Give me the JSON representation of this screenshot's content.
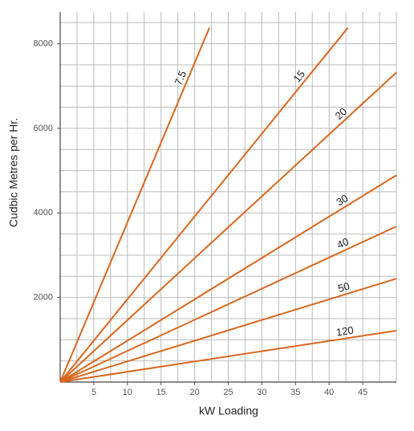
{
  "chart_data": {
    "type": "line",
    "x_label": "kW Loading",
    "y_label": "Cudbic Metres per Hr.",
    "xlim": [
      0,
      50
    ],
    "ylim": [
      0,
      8750
    ],
    "xticks": [
      5,
      10,
      15,
      20,
      25,
      30,
      35,
      40,
      45
    ],
    "yticks": [
      2000,
      4000,
      6000,
      8000
    ],
    "x_minor_step": 2.5,
    "y_minor_step": 500,
    "grid": true,
    "series": [
      {
        "name": "7.5",
        "color": "#d9671e",
        "x": [
          0,
          22.2
        ],
        "values": [
          0,
          8380
        ]
      },
      {
        "name": "15",
        "color": "#d9671e",
        "x": [
          0,
          42.8
        ],
        "values": [
          0,
          8380
        ]
      },
      {
        "name": "20",
        "color": "#d9671e",
        "x": [
          0,
          50
        ],
        "values": [
          0,
          7320
        ]
      },
      {
        "name": "30",
        "color": "#d9671e",
        "x": [
          0,
          50
        ],
        "values": [
          0,
          4890
        ]
      },
      {
        "name": "40",
        "color": "#d9671e",
        "x": [
          0,
          50
        ],
        "values": [
          0,
          3680
        ]
      },
      {
        "name": "50",
        "color": "#d9671e",
        "x": [
          0,
          50
        ],
        "values": [
          0,
          2445
        ]
      },
      {
        "name": "120",
        "color": "#d9671e",
        "x": [
          0,
          50
        ],
        "values": [
          0,
          1215
        ]
      }
    ]
  }
}
